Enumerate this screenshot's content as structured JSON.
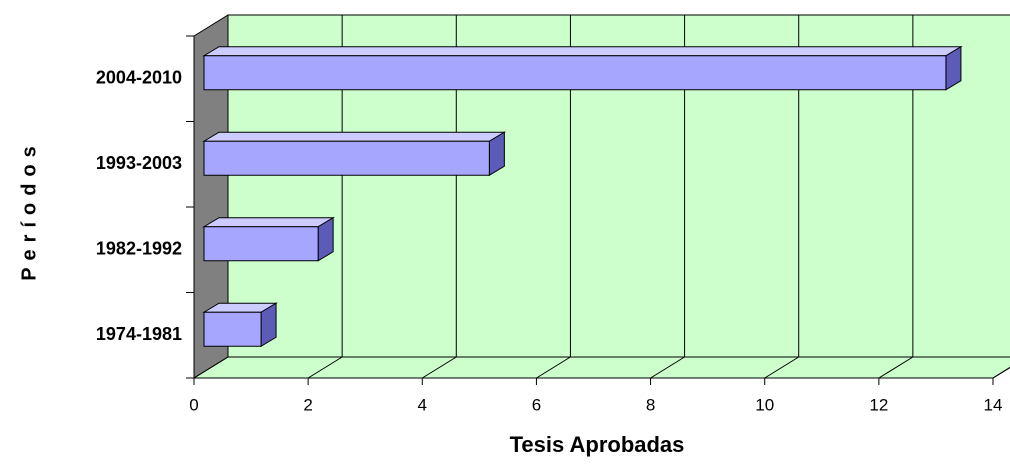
{
  "chart_data": {
    "type": "bar",
    "categories": [
      "1974-1981",
      "1982-1992",
      "1993-2003",
      "2004-2010"
    ],
    "values": [
      1,
      2,
      5,
      13
    ],
    "color": "#a6a6ff",
    "xlabel": "Tesis Aprobadas",
    "ylabel": "Períodos",
    "xlim": [
      0,
      14
    ],
    "xticks": [
      0,
      2,
      4,
      6,
      8,
      10,
      12,
      14
    ],
    "grid": true
  }
}
